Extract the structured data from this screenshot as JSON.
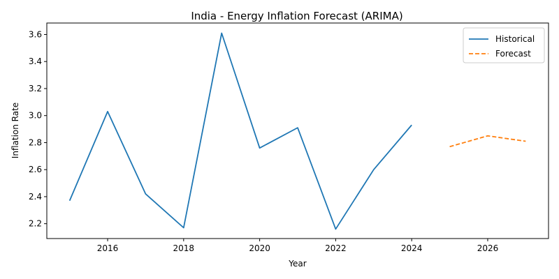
{
  "chart_data": {
    "type": "line",
    "title": "India - Energy Inflation Forecast (ARIMA)",
    "xlabel": "Year",
    "ylabel": "Inflation Rate",
    "xlim": [
      2014.4,
      2027.6
    ],
    "ylim": [
      2.09,
      3.685
    ],
    "xticks": [
      "2016",
      "2018",
      "2020",
      "2022",
      "2024",
      "2026"
    ],
    "yticks": [
      "2.2",
      "2.4",
      "2.6",
      "2.8",
      "3.0",
      "3.2",
      "3.4",
      "3.6"
    ],
    "grid": false,
    "legend_position": "top-right",
    "series": [
      {
        "name": "Historical",
        "style": "solid",
        "color": "#1f77b4",
        "x": [
          2015,
          2016,
          2017,
          2018,
          2019,
          2020,
          2021,
          2022,
          2023,
          2024
        ],
        "y": [
          2.37,
          3.03,
          2.42,
          2.17,
          3.61,
          2.76,
          2.91,
          2.16,
          2.6,
          2.93
        ]
      },
      {
        "name": "Forecast",
        "style": "dashed",
        "color": "#ff7f0e",
        "x": [
          2025,
          2026,
          2027
        ],
        "y": [
          2.77,
          2.85,
          2.81
        ]
      }
    ]
  }
}
